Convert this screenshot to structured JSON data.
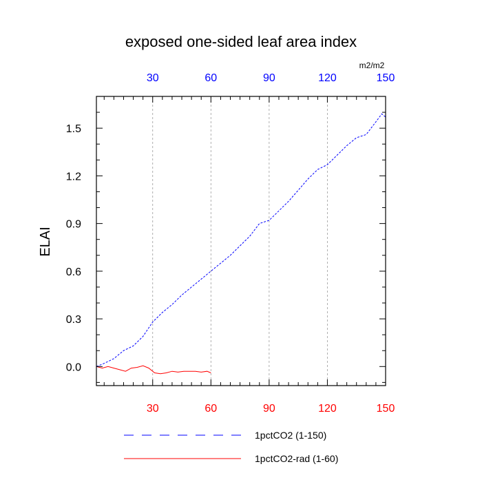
{
  "chart_data": {
    "type": "line",
    "title": "exposed one-sided leaf area index",
    "units": "m2/m2",
    "ylabel": "ELAI",
    "xlabel": "",
    "xlim": [
      1,
      150
    ],
    "ylim": [
      -0.12,
      1.7
    ],
    "x_ticks": [
      30,
      60,
      90,
      120,
      150
    ],
    "x_tick_labels": [
      "30",
      "60",
      "90",
      "120",
      "150"
    ],
    "y_ticks": [
      0.0,
      0.3,
      0.6,
      0.9,
      1.2,
      1.5
    ],
    "y_tick_labels": [
      "0.0",
      "0.3",
      "0.6",
      "0.9",
      "1.2",
      "1.5"
    ],
    "bottom_axis_color": "#ff0000",
    "top_axis_color": "#0000ff",
    "vertical_grid": true,
    "legend_position": "bottom",
    "series": [
      {
        "name": "1pctCO2 (1-150)",
        "color": "#0000ff",
        "dash": "dashed",
        "x": [
          1,
          5,
          10,
          15,
          20,
          25,
          30,
          35,
          40,
          45,
          50,
          55,
          60,
          65,
          70,
          75,
          80,
          85,
          90,
          95,
          100,
          105,
          110,
          115,
          120,
          125,
          130,
          135,
          140,
          145,
          148,
          150
        ],
        "y": [
          0.0,
          0.02,
          0.05,
          0.1,
          0.13,
          0.19,
          0.28,
          0.34,
          0.39,
          0.45,
          0.5,
          0.55,
          0.6,
          0.65,
          0.7,
          0.76,
          0.82,
          0.9,
          0.92,
          0.98,
          1.04,
          1.11,
          1.18,
          1.24,
          1.27,
          1.33,
          1.39,
          1.44,
          1.46,
          1.54,
          1.59,
          1.57
        ]
      },
      {
        "name": "1pctCO2-rad (1-60)",
        "color": "#ff0000",
        "dash": "solid",
        "x": [
          1,
          4,
          7,
          10,
          13,
          16,
          19,
          22,
          25,
          28,
          31,
          34,
          37,
          40,
          43,
          46,
          49,
          52,
          55,
          58,
          60
        ],
        "y": [
          0.0,
          -0.01,
          0.0,
          -0.01,
          -0.02,
          -0.03,
          -0.01,
          -0.005,
          0.005,
          -0.01,
          -0.04,
          -0.045,
          -0.04,
          -0.03,
          -0.035,
          -0.03,
          -0.03,
          -0.03,
          -0.035,
          -0.03,
          -0.04
        ]
      }
    ]
  }
}
